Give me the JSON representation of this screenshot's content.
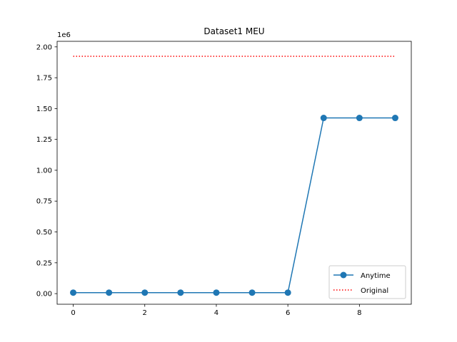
{
  "chart_data": {
    "type": "line",
    "title": "Dataset1 MEU",
    "xlabel": "",
    "ylabel": "",
    "y_offset_label": "1e6",
    "xlim": [
      -0.45,
      9.45
    ],
    "ylim": [
      -0.086,
      2.045
    ],
    "x_ticks": [
      0,
      2,
      4,
      6,
      8
    ],
    "x_tick_labels": [
      "0",
      "2",
      "4",
      "6",
      "8"
    ],
    "y_ticks": [
      0.0,
      0.25,
      0.5,
      0.75,
      1.0,
      1.25,
      1.5,
      1.75,
      2.0
    ],
    "y_tick_labels": [
      "0.00",
      "0.25",
      "0.50",
      "0.75",
      "1.00",
      "1.25",
      "1.50",
      "1.75",
      "2.00"
    ],
    "grid": false,
    "legend_position": "lower-right",
    "x": [
      0,
      1,
      2,
      3,
      4,
      5,
      6,
      7,
      8,
      9
    ],
    "series": [
      {
        "name": "Anytime",
        "style": "solid-line-with-circle-markers",
        "color": "#1f77b4",
        "values": [
          0.008,
          0.008,
          0.008,
          0.008,
          0.008,
          0.008,
          0.008,
          1.424,
          1.424,
          1.424
        ]
      },
      {
        "name": "Original",
        "style": "dotted-line",
        "color": "#ff0000",
        "values": [
          1.924,
          1.924,
          1.924,
          1.924,
          1.924,
          1.924,
          1.924,
          1.924,
          1.924,
          1.924
        ]
      }
    ]
  }
}
